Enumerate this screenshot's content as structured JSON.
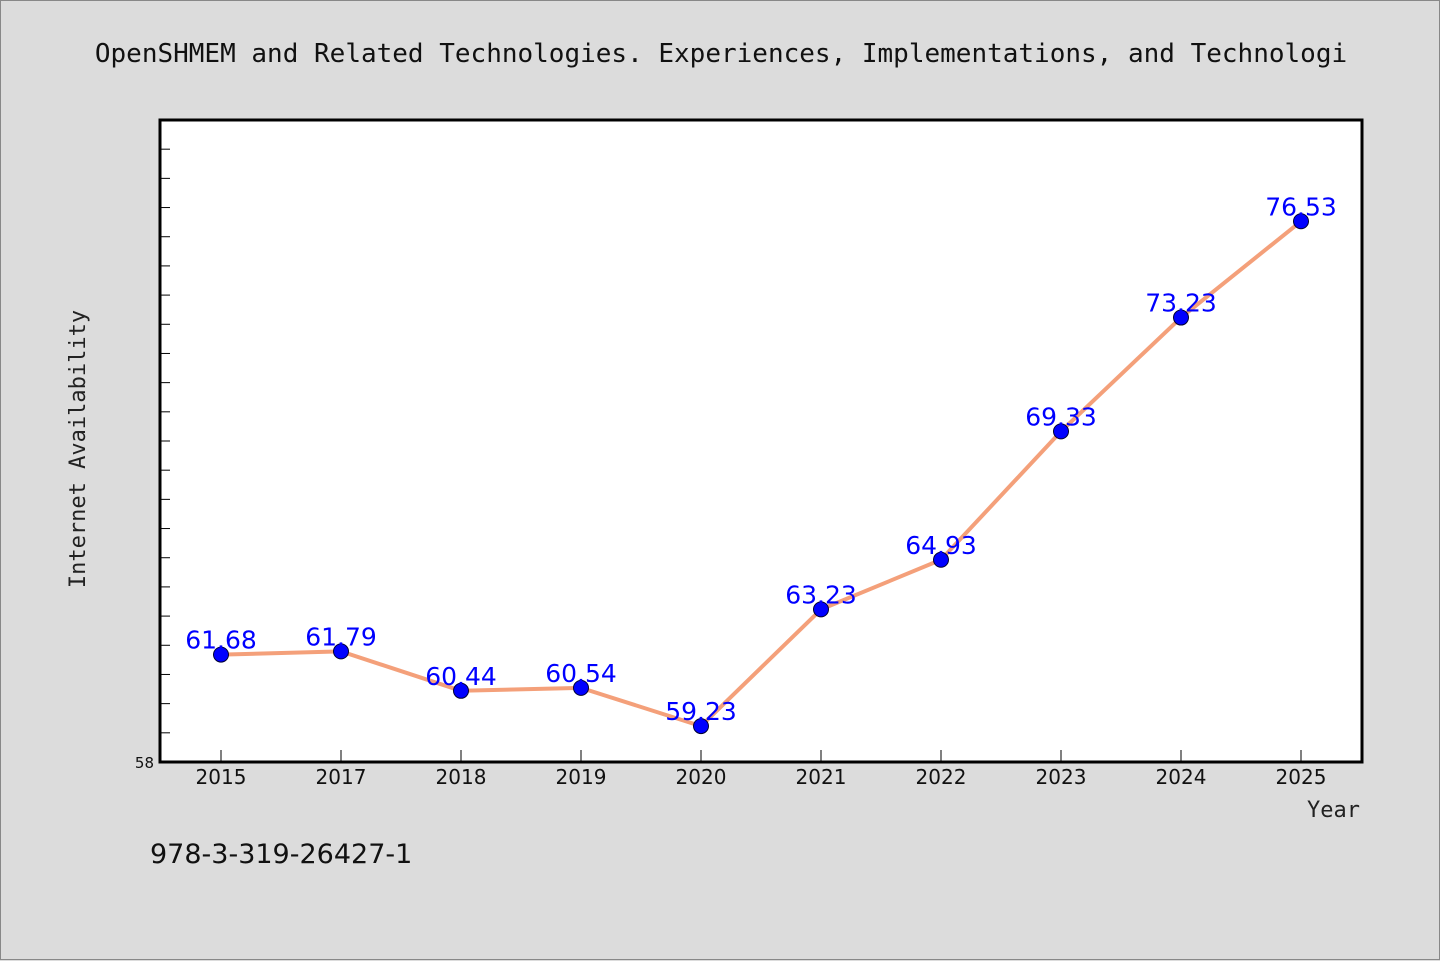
{
  "colors": {
    "background": "#dcdcdc",
    "plot_background": "#ffffff",
    "line": "#f4a07a",
    "marker": "#0000ff",
    "data_label": "#0000ff",
    "axis": "#000000"
  },
  "footnote": "978-3-319-26427-1",
  "chart_data": {
    "type": "line",
    "title": "OpenSHMEM and Related Technologies. Experiences, Implementations, and Technologi",
    "xlabel": "Year",
    "ylabel": "Internet Availability",
    "categories": [
      "2015",
      "2017",
      "2018",
      "2019",
      "2020",
      "2021",
      "2022",
      "2023",
      "2024",
      "2025"
    ],
    "series": [
      {
        "values": [
          61.68,
          61.79,
          60.44,
          60.54,
          59.23,
          63.23,
          64.93,
          69.33,
          73.23,
          76.53
        ],
        "labels": [
          "61.68",
          "61.79",
          "60.44",
          "60.54",
          "59.23",
          "63.23",
          "64.93",
          "69.33",
          "73.23",
          "76.53"
        ]
      }
    ],
    "ylim": [
      58,
      80
    ],
    "y_tick_labels": [
      "58"
    ],
    "grid": false,
    "legend": "none"
  }
}
